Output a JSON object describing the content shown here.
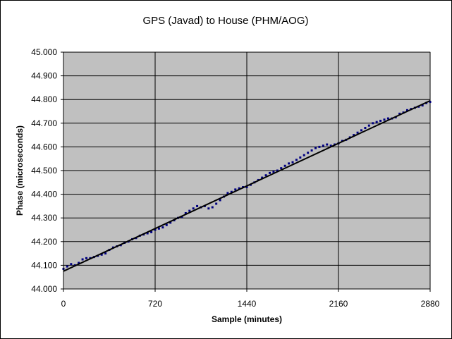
{
  "chart_data": {
    "type": "scatter",
    "title": "GPS (Javad) to House (PHM/AOG)",
    "xlabel": "Sample (minutes)",
    "ylabel": "Phase (microseconds)",
    "xlim": [
      0,
      2880
    ],
    "ylim": [
      44.0,
      45.0
    ],
    "x_ticks": [
      "0",
      "720",
      "1440",
      "2160",
      "2880"
    ],
    "y_ticks": [
      "44.000",
      "44.100",
      "44.200",
      "44.300",
      "44.400",
      "44.500",
      "44.600",
      "44.700",
      "44.800",
      "44.900",
      "45.000"
    ],
    "grid": "major gridlines on both axes",
    "legend": "none",
    "plot_background": "#c0c0c0",
    "point_color": "#000080",
    "trendline_color": "#000000",
    "trendline": {
      "x": [
        0,
        2880
      ],
      "y": [
        44.075,
        44.795
      ]
    },
    "series": [
      {
        "x": [
          0,
          30,
          60,
          90,
          120,
          150,
          180,
          210,
          240,
          270,
          300,
          330,
          360,
          390,
          420,
          450,
          480,
          510,
          540,
          570,
          600,
          630,
          660,
          690,
          720,
          750,
          780,
          810,
          840,
          870,
          900,
          930,
          960,
          990,
          1020,
          1050,
          1080,
          1110,
          1140,
          1170,
          1200,
          1230,
          1260,
          1290,
          1320,
          1350,
          1380,
          1410,
          1440,
          1470,
          1500,
          1530,
          1560,
          1590,
          1620,
          1650,
          1680,
          1710,
          1740,
          1770,
          1800,
          1830,
          1860,
          1890,
          1920,
          1950,
          1980,
          2010,
          2040,
          2070,
          2100,
          2130,
          2160,
          2190,
          2220,
          2250,
          2280,
          2310,
          2340,
          2370,
          2400,
          2430,
          2460,
          2490,
          2520,
          2550,
          2580,
          2610,
          2640,
          2670,
          2700,
          2730,
          2760,
          2790,
          2820,
          2850,
          2880
        ],
        "y": [
          44.085,
          44.095,
          44.105,
          44.1,
          44.11,
          44.125,
          44.13,
          44.13,
          44.135,
          44.14,
          44.145,
          44.15,
          44.165,
          44.175,
          44.18,
          44.185,
          44.195,
          44.2,
          44.21,
          44.215,
          44.225,
          44.23,
          44.235,
          44.24,
          44.25,
          44.255,
          44.26,
          44.27,
          44.28,
          44.29,
          44.3,
          44.305,
          44.32,
          44.33,
          44.34,
          44.35,
          44.345,
          44.35,
          44.34,
          44.345,
          44.36,
          44.375,
          44.39,
          44.405,
          44.41,
          44.42,
          44.425,
          44.43,
          44.43,
          44.44,
          44.45,
          44.46,
          44.47,
          44.48,
          44.49,
          44.495,
          44.5,
          44.51,
          44.52,
          44.53,
          44.535,
          44.545,
          44.555,
          44.565,
          44.575,
          44.585,
          44.595,
          44.6,
          44.605,
          44.61,
          44.605,
          44.61,
          44.615,
          44.625,
          44.63,
          44.64,
          44.65,
          44.66,
          44.67,
          44.68,
          44.69,
          44.7,
          44.705,
          44.71,
          44.715,
          44.72,
          44.72,
          44.725,
          44.74,
          44.745,
          44.755,
          44.76,
          44.765,
          44.77,
          44.775,
          44.785,
          44.79
        ]
      }
    ]
  }
}
